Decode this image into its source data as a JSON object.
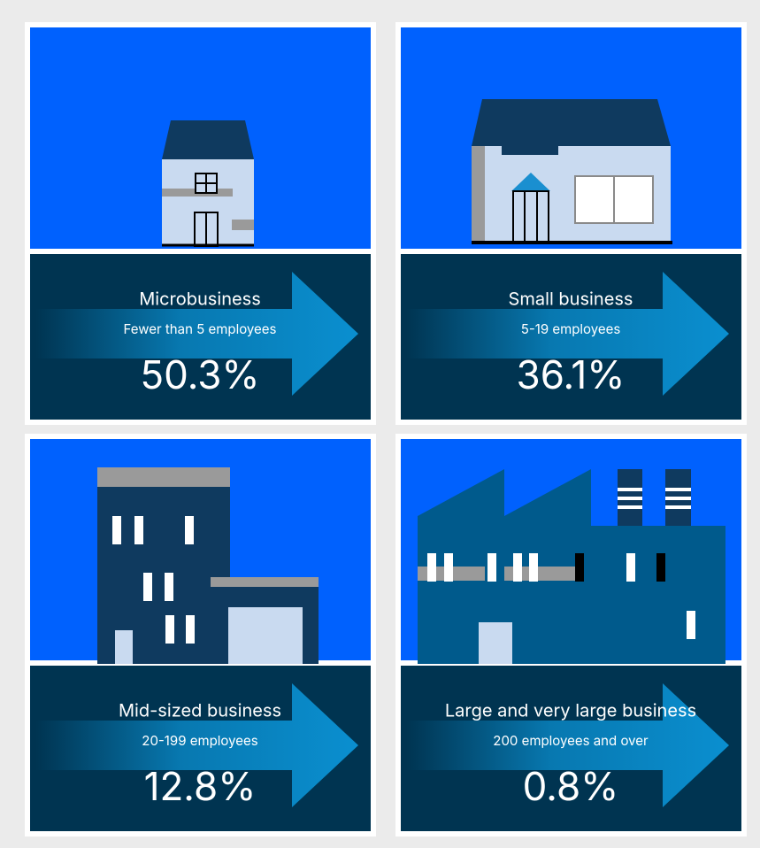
{
  "panels": [
    {
      "title": "Microbusiness",
      "subtitle": "Fewer than 5 employees",
      "value": "50.3%"
    },
    {
      "title": "Small business",
      "subtitle": "5-19 employees",
      "value": "36.1%"
    },
    {
      "title": "Mid-sized business",
      "subtitle": "20-199 employees",
      "value": "12.8%"
    },
    {
      "title": "Large and very large business",
      "subtitle": "200 employees and over",
      "value": "0.8%"
    }
  ]
}
